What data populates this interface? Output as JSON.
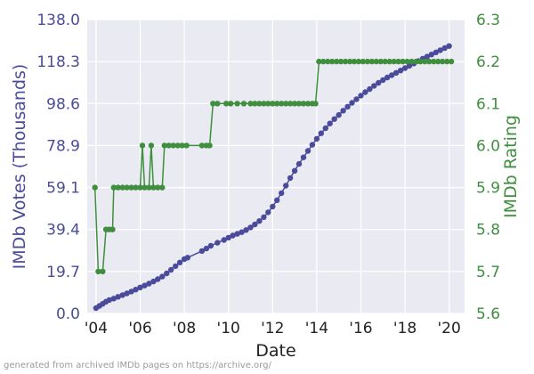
{
  "chart_data": {
    "type": "line",
    "xlabel": "Date",
    "ylabel_left": "IMDb Votes (Thousands)",
    "ylabel_right": "IMDb Rating",
    "x_range": [
      2003.6,
      2020.7
    ],
    "xticks": [
      {
        "v": 2004,
        "label": "'04"
      },
      {
        "v": 2006,
        "label": "'06"
      },
      {
        "v": 2008,
        "label": "'08"
      },
      {
        "v": 2010,
        "label": "'10"
      },
      {
        "v": 2012,
        "label": "'12"
      },
      {
        "v": 2014,
        "label": "'14"
      },
      {
        "v": 2016,
        "label": "'16"
      },
      {
        "v": 2018,
        "label": "'18"
      },
      {
        "v": 2020,
        "label": "'20"
      }
    ],
    "y_left_range": [
      0.0,
      138.0
    ],
    "y_left_ticks": [
      "0.0",
      "19.7",
      "39.4",
      "59.1",
      "78.9",
      "98.6",
      "118.3",
      "138.0"
    ],
    "y_right_range": [
      5.6,
      6.3
    ],
    "y_right_ticks": [
      "5.6",
      "5.7",
      "5.8",
      "5.9",
      "6.0",
      "6.1",
      "6.2",
      "6.3"
    ],
    "grid": true,
    "series": [
      {
        "name": "IMDb Votes (Thousands)",
        "axis": "left",
        "color": "#4b4b9b",
        "points": [
          [
            2004.0,
            2.5
          ],
          [
            2004.15,
            3.5
          ],
          [
            2004.3,
            4.5
          ],
          [
            2004.45,
            5.5
          ],
          [
            2004.6,
            6.3
          ],
          [
            2004.8,
            7.0
          ],
          [
            2005.0,
            7.8
          ],
          [
            2005.2,
            8.6
          ],
          [
            2005.4,
            9.4
          ],
          [
            2005.6,
            10.3
          ],
          [
            2005.8,
            11.2
          ],
          [
            2006.0,
            12.2
          ],
          [
            2006.2,
            13.1
          ],
          [
            2006.4,
            14.0
          ],
          [
            2006.6,
            15.0
          ],
          [
            2006.8,
            16.1
          ],
          [
            2007.0,
            17.3
          ],
          [
            2007.2,
            18.8
          ],
          [
            2007.4,
            20.5
          ],
          [
            2007.6,
            22.2
          ],
          [
            2007.8,
            23.9
          ],
          [
            2008.0,
            25.5
          ],
          [
            2008.15,
            26.2
          ],
          [
            2008.8,
            29.3
          ],
          [
            2009.0,
            30.5
          ],
          [
            2009.2,
            31.8
          ],
          [
            2009.5,
            33.2
          ],
          [
            2009.8,
            34.5
          ],
          [
            2010.0,
            35.6
          ],
          [
            2010.2,
            36.6
          ],
          [
            2010.4,
            37.4
          ],
          [
            2010.6,
            38.2
          ],
          [
            2010.8,
            39.2
          ],
          [
            2011.0,
            40.4
          ],
          [
            2011.2,
            41.8
          ],
          [
            2011.4,
            43.4
          ],
          [
            2011.6,
            45.2
          ],
          [
            2011.8,
            47.5
          ],
          [
            2012.0,
            50.2
          ],
          [
            2012.2,
            53.2
          ],
          [
            2012.4,
            56.5
          ],
          [
            2012.6,
            60.0
          ],
          [
            2012.8,
            63.6
          ],
          [
            2013.0,
            67.0
          ],
          [
            2013.2,
            70.2
          ],
          [
            2013.4,
            73.3
          ],
          [
            2013.6,
            76.3
          ],
          [
            2013.8,
            79.2
          ],
          [
            2014.0,
            82.0
          ],
          [
            2014.2,
            84.6
          ],
          [
            2014.4,
            87.0
          ],
          [
            2014.6,
            89.2
          ],
          [
            2014.8,
            91.3
          ],
          [
            2015.0,
            93.2
          ],
          [
            2015.2,
            95.2
          ],
          [
            2015.4,
            97.1
          ],
          [
            2015.6,
            98.9
          ],
          [
            2015.8,
            100.6
          ],
          [
            2016.0,
            102.3
          ],
          [
            2016.2,
            103.9
          ],
          [
            2016.4,
            105.4
          ],
          [
            2016.6,
            106.9
          ],
          [
            2016.8,
            108.3
          ],
          [
            2017.0,
            109.6
          ],
          [
            2017.2,
            110.8
          ],
          [
            2017.4,
            111.9
          ],
          [
            2017.6,
            113.0
          ],
          [
            2017.8,
            114.1
          ],
          [
            2018.0,
            115.2
          ],
          [
            2018.2,
            116.3
          ],
          [
            2018.4,
            117.4
          ],
          [
            2018.6,
            118.5
          ],
          [
            2018.8,
            119.6
          ],
          [
            2019.0,
            120.6
          ],
          [
            2019.2,
            121.6
          ],
          [
            2019.4,
            122.6
          ],
          [
            2019.6,
            123.6
          ],
          [
            2019.8,
            124.6
          ],
          [
            2020.0,
            125.6
          ]
        ]
      },
      {
        "name": "IMDb Rating",
        "axis": "right",
        "color": "#3f8f3f",
        "points": [
          [
            2003.95,
            5.9
          ],
          [
            2004.1,
            5.7
          ],
          [
            2004.3,
            5.7
          ],
          [
            2004.45,
            5.8
          ],
          [
            2004.6,
            5.8
          ],
          [
            2004.75,
            5.8
          ],
          [
            2004.8,
            5.9
          ],
          [
            2005.0,
            5.9
          ],
          [
            2005.2,
            5.9
          ],
          [
            2005.4,
            5.9
          ],
          [
            2005.6,
            5.9
          ],
          [
            2005.8,
            5.9
          ],
          [
            2006.0,
            5.9
          ],
          [
            2006.1,
            6.0
          ],
          [
            2006.2,
            5.9
          ],
          [
            2006.4,
            5.9
          ],
          [
            2006.5,
            6.0
          ],
          [
            2006.6,
            5.9
          ],
          [
            2006.8,
            5.9
          ],
          [
            2007.0,
            5.9
          ],
          [
            2007.1,
            6.0
          ],
          [
            2007.3,
            6.0
          ],
          [
            2007.5,
            6.0
          ],
          [
            2007.7,
            6.0
          ],
          [
            2007.9,
            6.0
          ],
          [
            2008.1,
            6.0
          ],
          [
            2008.8,
            6.0
          ],
          [
            2009.0,
            6.0
          ],
          [
            2009.15,
            6.0
          ],
          [
            2009.3,
            6.1
          ],
          [
            2009.5,
            6.1
          ],
          [
            2009.9,
            6.1
          ],
          [
            2010.1,
            6.1
          ],
          [
            2010.4,
            6.1
          ],
          [
            2010.7,
            6.1
          ],
          [
            2011.0,
            6.1
          ],
          [
            2011.2,
            6.1
          ],
          [
            2011.4,
            6.1
          ],
          [
            2011.6,
            6.1
          ],
          [
            2011.8,
            6.1
          ],
          [
            2012.0,
            6.1
          ],
          [
            2012.2,
            6.1
          ],
          [
            2012.4,
            6.1
          ],
          [
            2012.6,
            6.1
          ],
          [
            2012.8,
            6.1
          ],
          [
            2013.0,
            6.1
          ],
          [
            2013.2,
            6.1
          ],
          [
            2013.4,
            6.1
          ],
          [
            2013.6,
            6.1
          ],
          [
            2013.8,
            6.1
          ],
          [
            2013.95,
            6.1
          ],
          [
            2014.1,
            6.2
          ],
          [
            2014.3,
            6.2
          ],
          [
            2014.5,
            6.2
          ],
          [
            2014.7,
            6.2
          ],
          [
            2014.9,
            6.2
          ],
          [
            2015.1,
            6.2
          ],
          [
            2015.3,
            6.2
          ],
          [
            2015.5,
            6.2
          ],
          [
            2015.7,
            6.2
          ],
          [
            2015.9,
            6.2
          ],
          [
            2016.1,
            6.2
          ],
          [
            2016.3,
            6.2
          ],
          [
            2016.5,
            6.2
          ],
          [
            2016.7,
            6.2
          ],
          [
            2016.9,
            6.2
          ],
          [
            2017.1,
            6.2
          ],
          [
            2017.3,
            6.2
          ],
          [
            2017.5,
            6.2
          ],
          [
            2017.7,
            6.2
          ],
          [
            2017.9,
            6.2
          ],
          [
            2018.1,
            6.2
          ],
          [
            2018.3,
            6.2
          ],
          [
            2018.5,
            6.2
          ],
          [
            2018.7,
            6.2
          ],
          [
            2018.9,
            6.2
          ],
          [
            2019.1,
            6.2
          ],
          [
            2019.3,
            6.2
          ],
          [
            2019.5,
            6.2
          ],
          [
            2019.7,
            6.2
          ],
          [
            2019.9,
            6.2
          ],
          [
            2020.1,
            6.2
          ]
        ]
      }
    ]
  },
  "footer": {
    "text": "generated from archived IMDb pages on https://archive.org/"
  }
}
